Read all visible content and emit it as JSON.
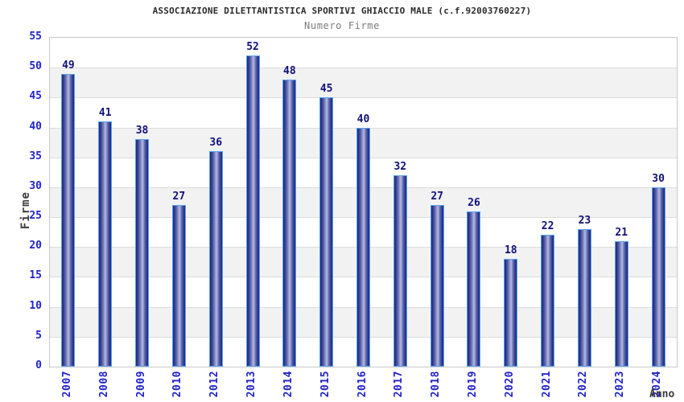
{
  "header": {
    "title": "ASSOCIAZIONE DILETTANTISTICA SPORTIVI GHIACCIO MALE (c.f.92003760227)",
    "subtitle": "Numero Firme"
  },
  "chart_data": {
    "type": "bar",
    "title": "ASSOCIAZIONE DILETTANTISTICA SPORTIVI GHIACCIO MALE (c.f.92003760227)",
    "subtitle": "Numero Firme",
    "xlabel": "Anno",
    "ylabel": "Firme",
    "categories": [
      "2007",
      "2008",
      "2009",
      "2010",
      "2012",
      "2013",
      "2014",
      "2015",
      "2016",
      "2017",
      "2018",
      "2019",
      "2020",
      "2021",
      "2022",
      "2023",
      "2024"
    ],
    "values": [
      49,
      41,
      38,
      27,
      36,
      52,
      48,
      45,
      40,
      32,
      27,
      26,
      18,
      22,
      23,
      21,
      30
    ],
    "ylim": [
      0,
      55
    ],
    "ytick_step": 5,
    "y_ticks": [
      "0",
      "5",
      "10",
      "15",
      "20",
      "25",
      "30",
      "35",
      "40",
      "45",
      "50",
      "55"
    ],
    "grid": "horizontal gridlines every 5 units with alternating shaded bands",
    "legend": "none",
    "colors": {
      "bar_edge": "#55a2f2",
      "bar_dark": "#232e85",
      "bar_mid": "#5f68ab",
      "bar_light": "#aab0dc",
      "value_label": "#10107a",
      "axis_tick_text": "#2222cc",
      "band_shade": "#f2f2f2",
      "gridline": "#dcdcdc",
      "frame": "#c8c8c8",
      "title_text": "#2b2b2b",
      "subtitle_text": "#7d7d7d",
      "axis_label_text": "#3c3c3c"
    }
  }
}
